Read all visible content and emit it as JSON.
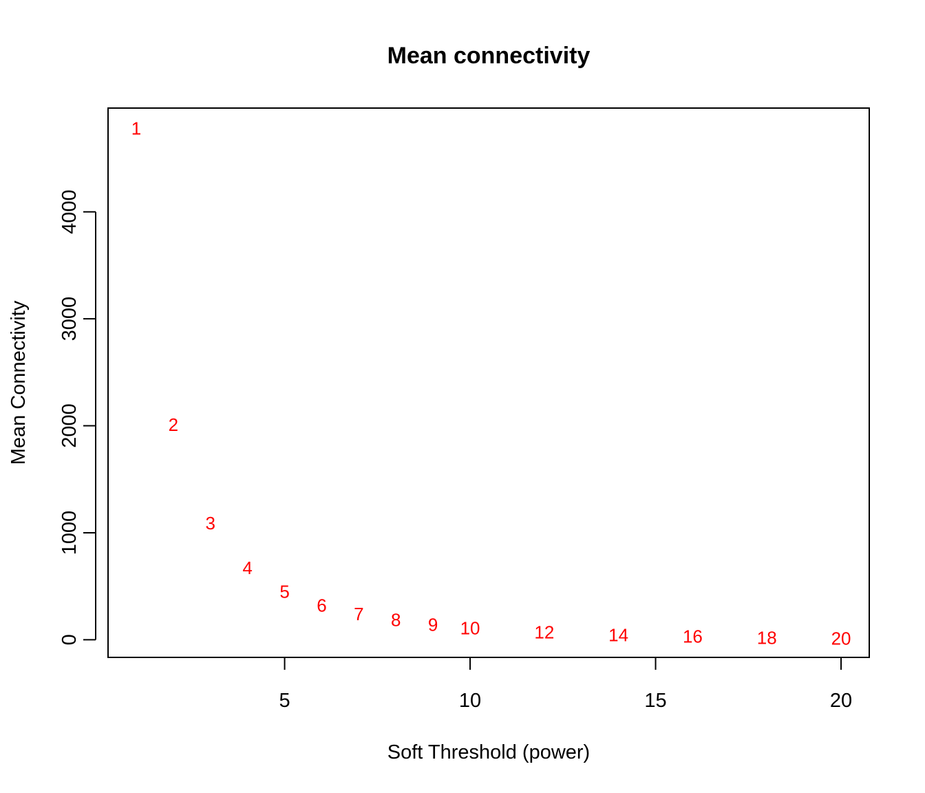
{
  "chart_data": {
    "type": "scatter",
    "title": "Mean connectivity",
    "xlabel": "Soft Threshold (power)",
    "ylabel": "Mean Connectivity",
    "xlim": [
      0.24,
      20.76
    ],
    "ylim": [
      -165,
      4970
    ],
    "xticks": [
      5,
      10,
      15,
      20
    ],
    "yticks": [
      0,
      1000,
      2000,
      3000,
      4000
    ],
    "grid": false,
    "legend": "none",
    "marker": "text-labels",
    "color": "#ff0000",
    "points": [
      {
        "x": 1,
        "y": 4780,
        "label": "1"
      },
      {
        "x": 2,
        "y": 2010,
        "label": "2"
      },
      {
        "x": 3,
        "y": 1090,
        "label": "3"
      },
      {
        "x": 4,
        "y": 670,
        "label": "4"
      },
      {
        "x": 5,
        "y": 450,
        "label": "5"
      },
      {
        "x": 6,
        "y": 320,
        "label": "6"
      },
      {
        "x": 7,
        "y": 240,
        "label": "7"
      },
      {
        "x": 8,
        "y": 185,
        "label": "8"
      },
      {
        "x": 9,
        "y": 140,
        "label": "9"
      },
      {
        "x": 10,
        "y": 110,
        "label": "10"
      },
      {
        "x": 12,
        "y": 70,
        "label": "12"
      },
      {
        "x": 14,
        "y": 45,
        "label": "14"
      },
      {
        "x": 16,
        "y": 30,
        "label": "16"
      },
      {
        "x": 18,
        "y": 20,
        "label": "18"
      },
      {
        "x": 20,
        "y": 12,
        "label": "20"
      }
    ]
  }
}
